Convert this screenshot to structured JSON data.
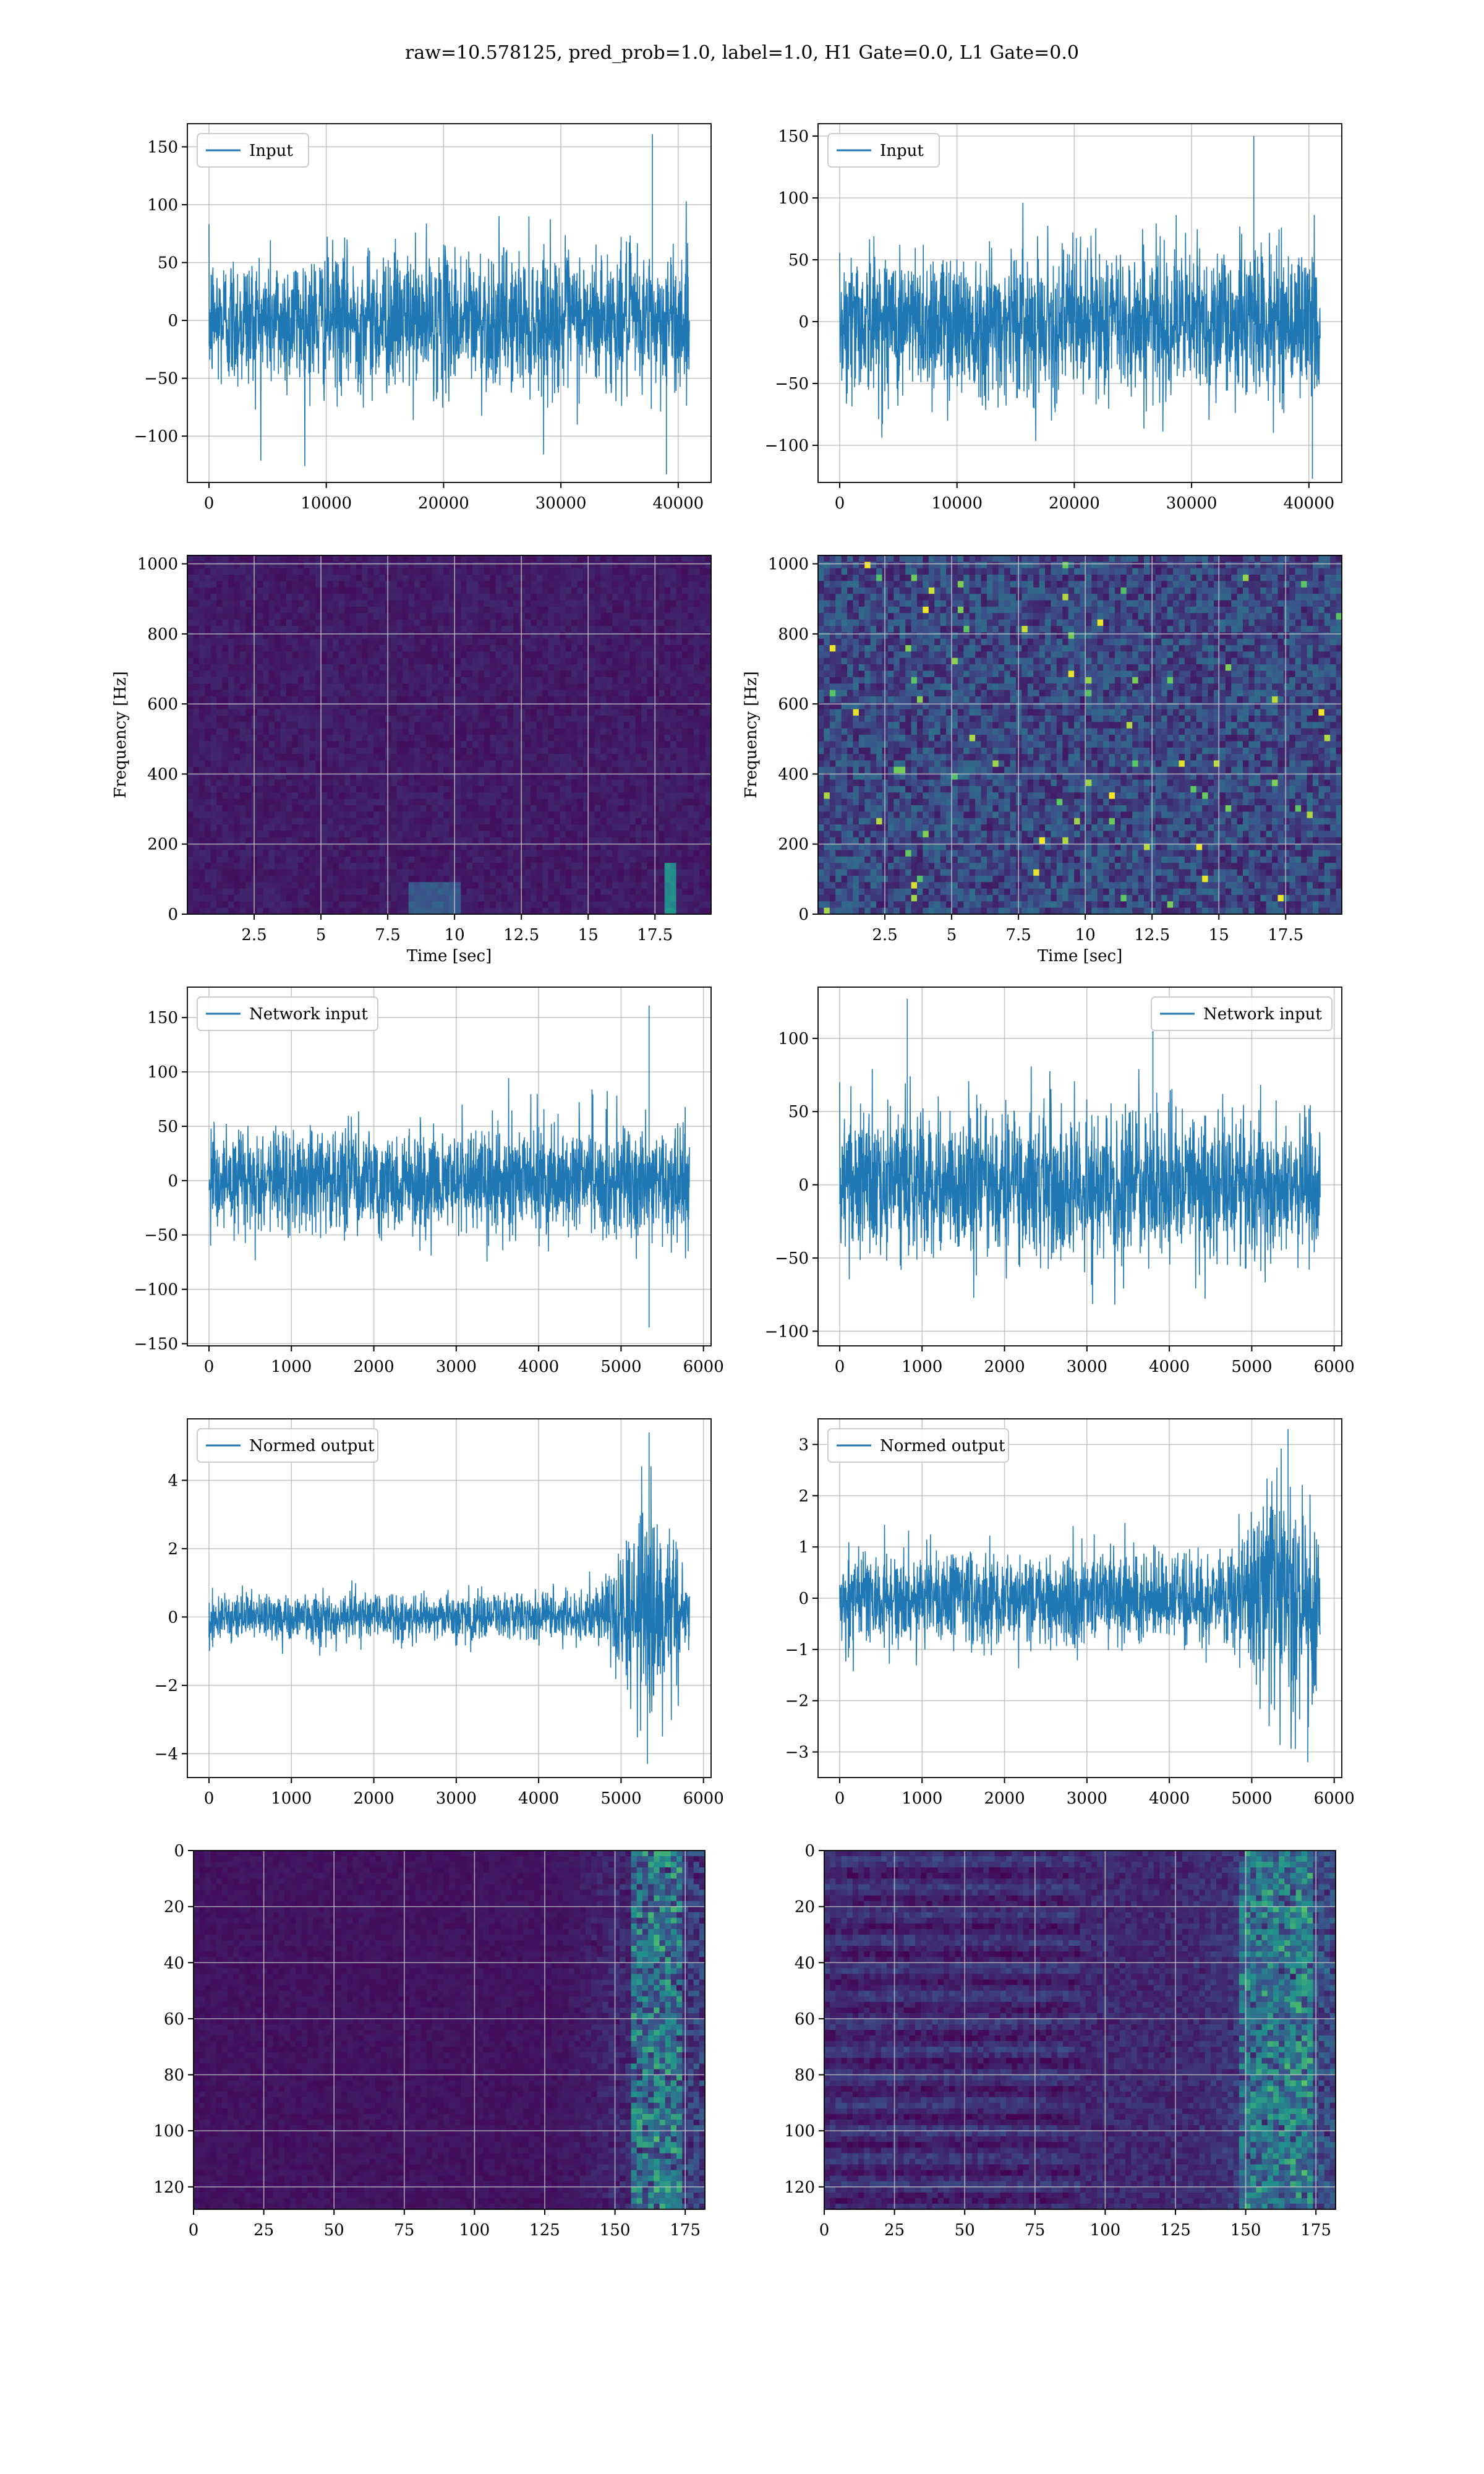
{
  "suptitle": "raw=10.578125, pred_prob=1.0, label=1.0, H1 Gate=0.0, L1 Gate=0.0",
  "colors": {
    "line": "#1f77b4",
    "grid": "#b0b0b0",
    "viridis_low": "#440154",
    "viridis_high": "#fde725"
  },
  "chart_data": [
    {
      "type": "line",
      "id": "input-left",
      "legend": "Input",
      "legend_loc": "upper-left",
      "x_range": [
        0,
        40960
      ],
      "ylim": [
        -140,
        170
      ],
      "xticks": [
        0,
        10000,
        20000,
        30000,
        40000
      ],
      "yticks": [
        -100,
        -50,
        0,
        50,
        100,
        150
      ],
      "envelope_std": 30,
      "spikes": [
        {
          "x": 37800,
          "y": 161
        },
        {
          "x": 39000,
          "y": -133
        }
      ],
      "grid": true
    },
    {
      "type": "line",
      "id": "input-right",
      "legend": "Input",
      "legend_loc": "upper-left",
      "x_range": [
        0,
        40960
      ],
      "ylim": [
        -130,
        160
      ],
      "xticks": [
        0,
        10000,
        20000,
        30000,
        40000
      ],
      "yticks": [
        -100,
        -50,
        0,
        50,
        100,
        150
      ],
      "envelope_std": 30,
      "spikes": [
        {
          "x": 35300,
          "y": 150
        },
        {
          "x": 40300,
          "y": -127
        }
      ],
      "grid": true
    },
    {
      "type": "heatmap",
      "id": "spec-left",
      "xlabel": "Time [sec]",
      "ylabel": "Frequency [Hz]",
      "xlim": [
        0,
        19.6
      ],
      "ylim": [
        0,
        1024
      ],
      "xticks": [
        2.5,
        5.0,
        7.5,
        10.0,
        12.5,
        15.0,
        17.5
      ],
      "yticks": [
        0,
        200,
        400,
        600,
        800,
        1000
      ],
      "intensity": "low",
      "grid": true
    },
    {
      "type": "heatmap",
      "id": "spec-right",
      "xlabel": "Time [sec]",
      "ylabel": "Frequency [Hz]",
      "xlim": [
        0,
        19.6
      ],
      "ylim": [
        0,
        1024
      ],
      "xticks": [
        2.5,
        5.0,
        7.5,
        10.0,
        12.5,
        15.0,
        17.5
      ],
      "yticks": [
        0,
        200,
        400,
        600,
        800,
        1000
      ],
      "intensity": "high",
      "grid": true
    },
    {
      "type": "line",
      "id": "netinput-left",
      "legend": "Network input",
      "legend_loc": "upper-left",
      "x_range": [
        0,
        5830
      ],
      "ylim": [
        -152,
        178
      ],
      "xticks": [
        0,
        1000,
        2000,
        3000,
        4000,
        5000,
        6000
      ],
      "yticks": [
        -150,
        -100,
        -50,
        0,
        50,
        100,
        150
      ],
      "envelope_std": 25,
      "spikes": [
        {
          "x": 5340,
          "y": 161
        },
        {
          "x": 5340,
          "y": -135
        }
      ],
      "grid": true
    },
    {
      "type": "line",
      "id": "netinput-right",
      "legend": "Network input",
      "legend_loc": "upper-right",
      "x_range": [
        0,
        5830
      ],
      "ylim": [
        -110,
        135
      ],
      "xticks": [
        0,
        1000,
        2000,
        3000,
        4000,
        5000,
        6000
      ],
      "yticks": [
        -100,
        -50,
        0,
        50,
        100
      ],
      "envelope_std": 25,
      "spikes": [
        {
          "x": 820,
          "y": 127
        },
        {
          "x": 3800,
          "y": 105
        }
      ],
      "grid": true
    },
    {
      "type": "line",
      "id": "normed-left",
      "legend": "Normed output",
      "legend_loc": "upper-left",
      "x_range": [
        0,
        5830
      ],
      "ylim": [
        -4.7,
        5.8
      ],
      "xticks": [
        0,
        1000,
        2000,
        3000,
        4000,
        5000,
        6000
      ],
      "yticks": [
        -4,
        -2,
        0,
        2,
        4
      ],
      "envelope_std": 0.35,
      "burst": {
        "from": 4600,
        "to": 5830,
        "peak": 5340,
        "gain": 4.5
      },
      "spikes": [
        {
          "x": 5340,
          "y": 5.4
        },
        {
          "x": 5320,
          "y": -4.3
        }
      ],
      "grid": true
    },
    {
      "type": "line",
      "id": "normed-right",
      "legend": "Normed output",
      "legend_loc": "upper-left",
      "x_range": [
        0,
        5830
      ],
      "ylim": [
        -3.5,
        3.5
      ],
      "xticks": [
        0,
        1000,
        2000,
        3000,
        4000,
        5000,
        6000
      ],
      "yticks": [
        -3,
        -2,
        -1,
        0,
        1,
        2,
        3
      ],
      "envelope_std": 0.45,
      "burst": {
        "from": 4600,
        "to": 5830,
        "peak": 5400,
        "gain": 2.6
      },
      "spikes": [
        {
          "x": 5440,
          "y": 3.3
        },
        {
          "x": 5680,
          "y": -3.2
        }
      ],
      "grid": true
    },
    {
      "type": "heatmap",
      "id": "feat-left",
      "xlim": [
        0,
        182
      ],
      "ylim": [
        128,
        0
      ],
      "xticks": [
        0,
        25,
        50,
        75,
        100,
        125,
        150,
        175
      ],
      "yticks": [
        0,
        20,
        40,
        60,
        80,
        100,
        120
      ],
      "intensity": "feature-low",
      "grid": true
    },
    {
      "type": "heatmap",
      "id": "feat-right",
      "xlim": [
        0,
        182
      ],
      "ylim": [
        128,
        0
      ],
      "xticks": [
        0,
        25,
        50,
        75,
        100,
        125,
        150,
        175
      ],
      "yticks": [
        0,
        20,
        40,
        60,
        80,
        100,
        120
      ],
      "intensity": "feature-high",
      "grid": true
    }
  ]
}
